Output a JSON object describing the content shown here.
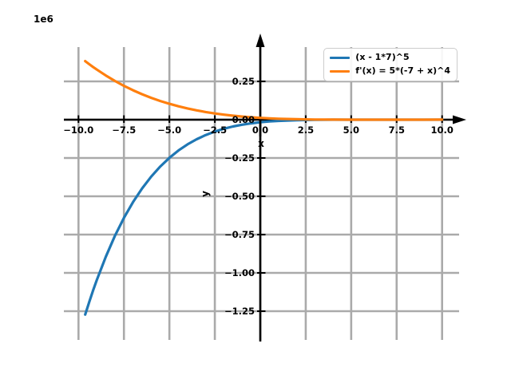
{
  "figure": {
    "background": "#ffffff",
    "grid_color": "#aaaaaa",
    "axis_color": "#000000"
  },
  "chart_data": {
    "type": "line",
    "title": "",
    "xlabel": "x",
    "ylabel": "y",
    "offset_text": "1e6",
    "y_unit": "1e6",
    "grid": true,
    "legend_position": "upper right",
    "xlim": [
      -10.8,
      10.95
    ],
    "ylim_millions": [
      -1.44,
      0.47
    ],
    "x_ticks": [
      -10.0,
      -7.5,
      -5.0,
      -2.5,
      0.0,
      2.5,
      5.0,
      7.5,
      10.0
    ],
    "y_ticks_millions": [
      0.25,
      0.0,
      -0.25,
      -0.5,
      -0.75,
      -1.0,
      -1.25
    ],
    "x": [
      -9.63,
      -9.4,
      -9.2,
      -9,
      -8.5,
      -8,
      -7.5,
      -7,
      -6.5,
      -6,
      -5.5,
      -5,
      -4.5,
      -4,
      -3.5,
      -3,
      -2.5,
      -2,
      -1.5,
      -1,
      -0.5,
      0,
      0.5,
      1,
      2,
      3,
      4,
      5,
      6,
      7,
      8,
      9,
      10
    ],
    "series": [
      {
        "name": "(x - 1*7)^5",
        "color": "#1f77b4",
        "values_millions": [
          -1.272,
          -1.1864,
          -1.1158,
          -1.0486,
          -0.8947,
          -0.7594,
          -0.641,
          -0.5378,
          -0.4484,
          -0.3713,
          -0.3052,
          -0.2488,
          -0.2011,
          -0.1611,
          -0.1276,
          -0.1,
          -0.0774,
          -0.059,
          -0.0444,
          -0.0328,
          -0.0237,
          -0.0168,
          -0.0116,
          -0.0078,
          -0.0031,
          -0.001,
          -0.0002,
          0,
          0,
          0,
          0,
          0,
          0.0002
        ]
      },
      {
        "name": "f'(x) = 5*(-7 + x)^4",
        "color": "#ff7f0e",
        "values_millions": [
          0.3824,
          0.3617,
          0.3444,
          0.3277,
          0.2886,
          0.2531,
          0.221,
          0.1921,
          0.1661,
          0.1428,
          0.1221,
          0.1037,
          0.0875,
          0.0732,
          0.0608,
          0.05,
          0.0407,
          0.0328,
          0.0261,
          0.0205,
          0.0158,
          0.012,
          0.0089,
          0.0065,
          0.0031,
          0.0013,
          0.0004,
          0.0001,
          0,
          0,
          0,
          0.0001,
          0.0004
        ]
      }
    ]
  }
}
